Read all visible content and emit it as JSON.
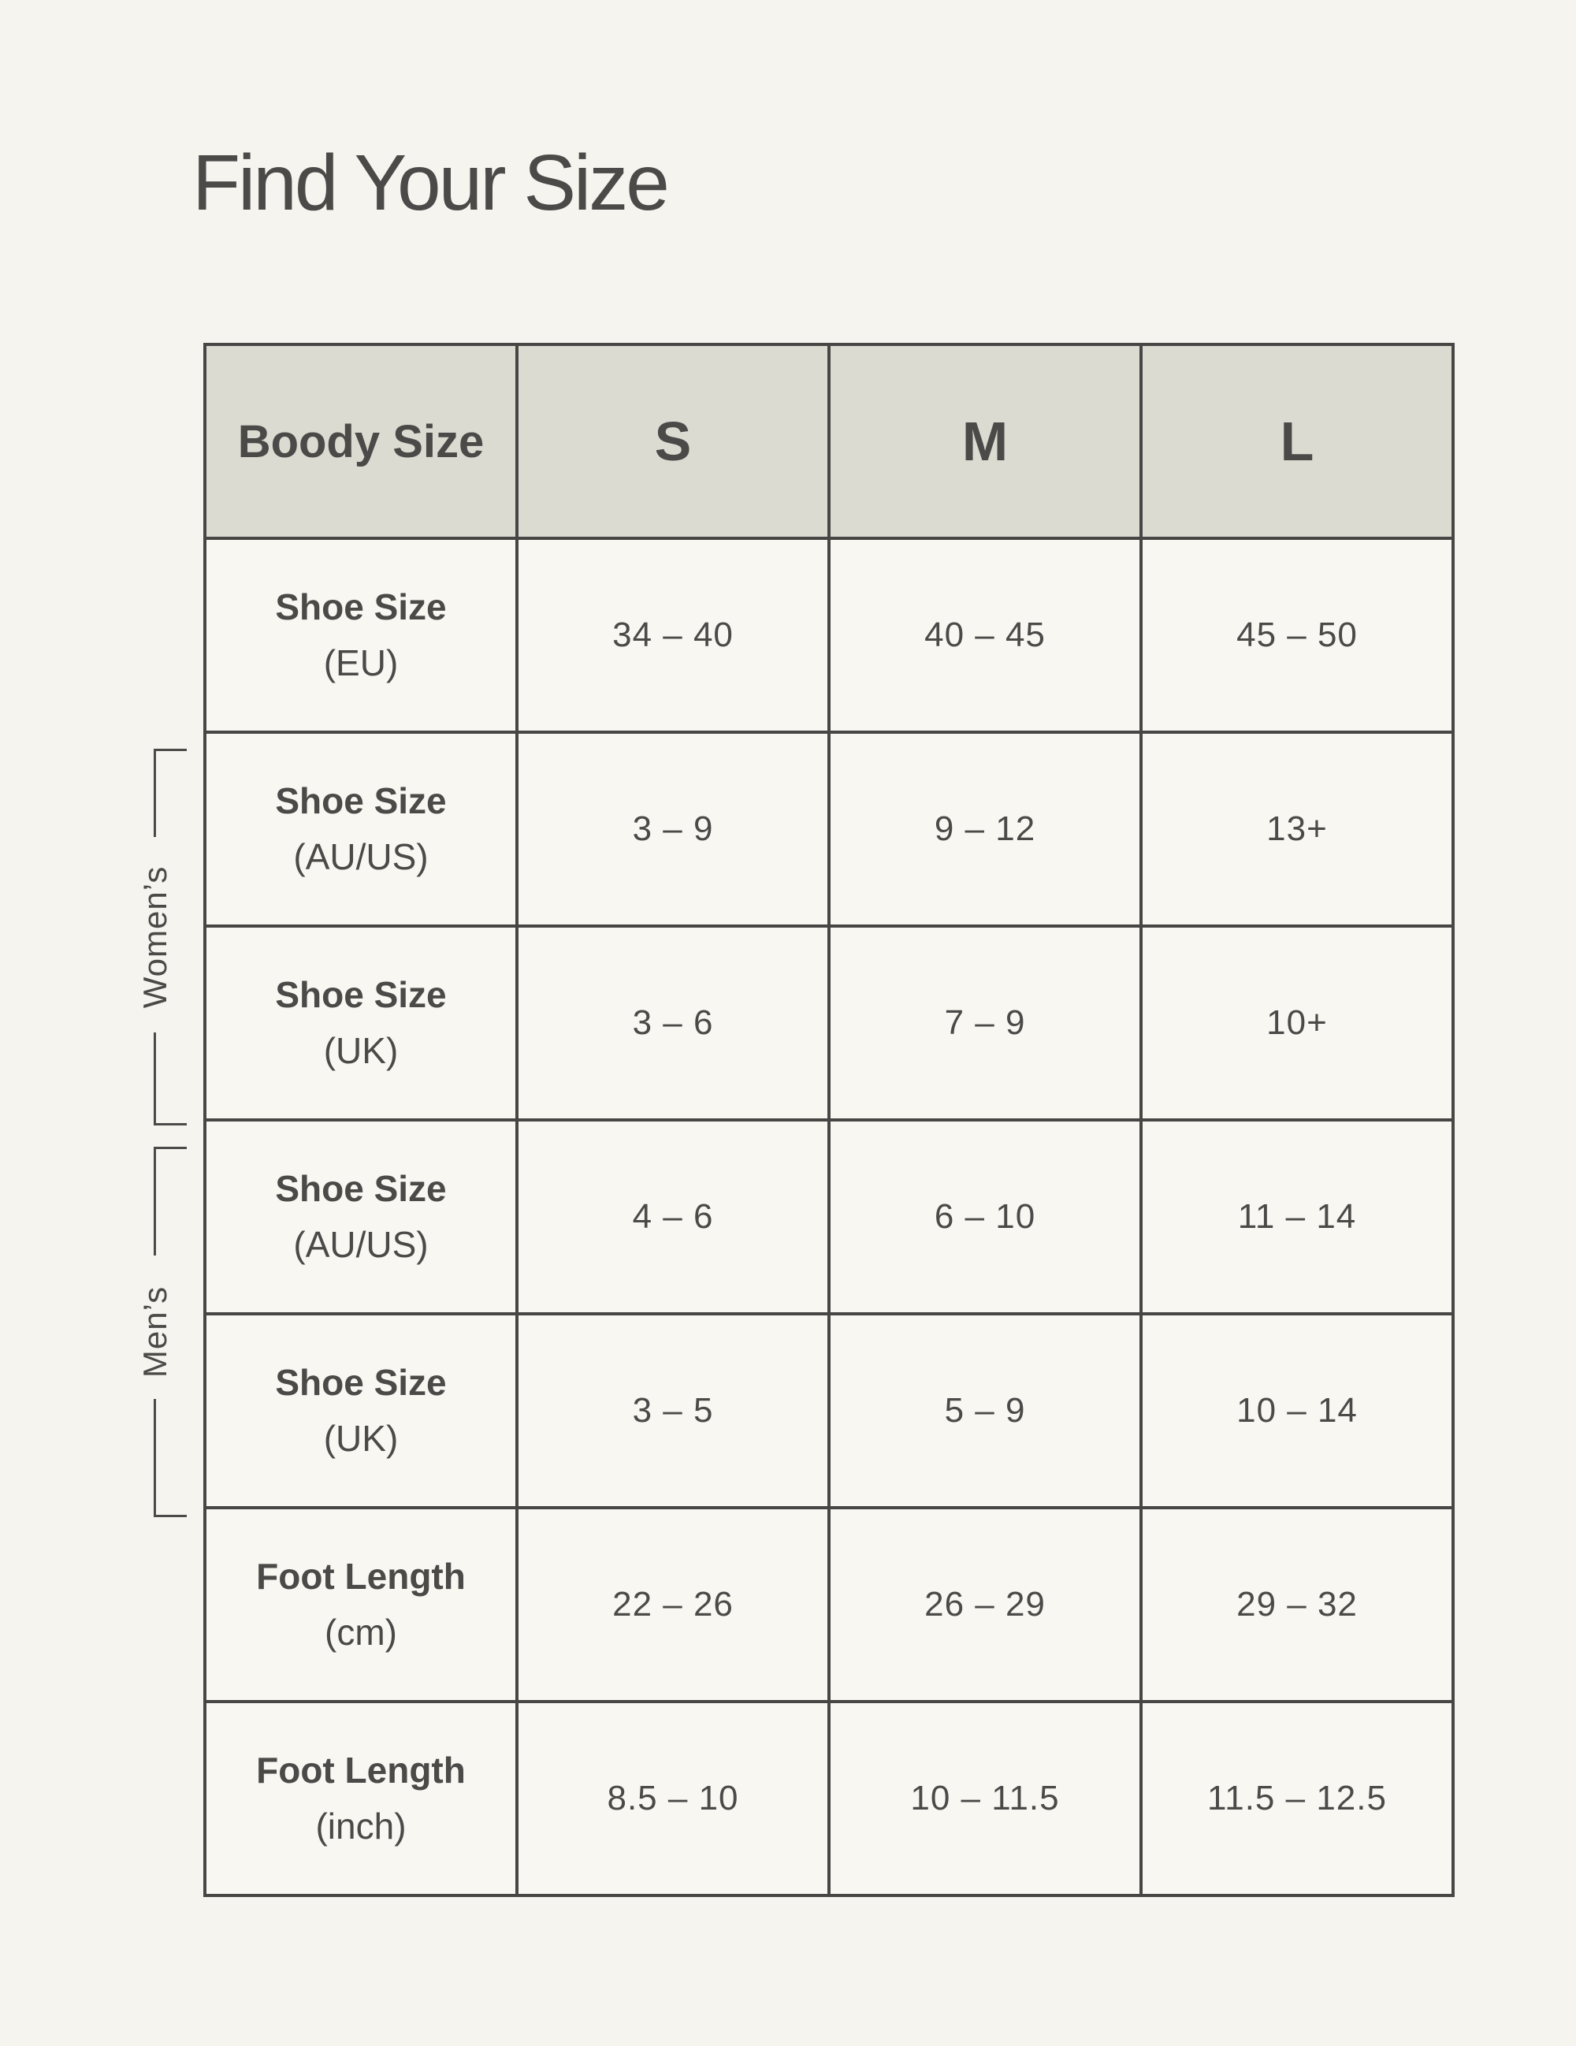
{
  "page": {
    "title": "Find Your Size"
  },
  "size_table": {
    "header": {
      "corner_label": "Boody Size",
      "sizes": [
        "S",
        "M",
        "L"
      ]
    },
    "rows": [
      {
        "label": "Shoe Size",
        "unit": "(EU)",
        "values": [
          "34 – 40",
          "40 – 45",
          "45 – 50"
        ]
      },
      {
        "label": "Shoe Size",
        "unit": "(AU/US)",
        "values": [
          "3 – 9",
          "9 – 12",
          "13+"
        ]
      },
      {
        "label": "Shoe Size",
        "unit": "(UK)",
        "values": [
          "3 – 6",
          "7 – 9",
          "10+"
        ]
      },
      {
        "label": "Shoe Size",
        "unit": "(AU/US)",
        "values": [
          "4 – 6",
          "6 – 10",
          "11 – 14"
        ]
      },
      {
        "label": "Shoe Size",
        "unit": "(UK)",
        "values": [
          "3 – 5",
          "5 – 9",
          "10 – 14"
        ]
      },
      {
        "label": "Foot Length",
        "unit": "(cm)",
        "values": [
          "22 – 26",
          "26 – 29",
          "29 – 32"
        ]
      },
      {
        "label": "Foot Length",
        "unit": "(inch)",
        "values": [
          "8.5 – 10",
          "10 – 11.5",
          "11.5 – 12.5"
        ]
      }
    ]
  },
  "group_brackets": {
    "womens_label": "Women’s",
    "mens_label": "Men’s"
  },
  "colors": {
    "page_bg": "#F5F4EE",
    "cell_bg": "#F8F7F2",
    "header_bg": "#DBDBD2",
    "border": "#474645",
    "text": "#4B4A48"
  }
}
